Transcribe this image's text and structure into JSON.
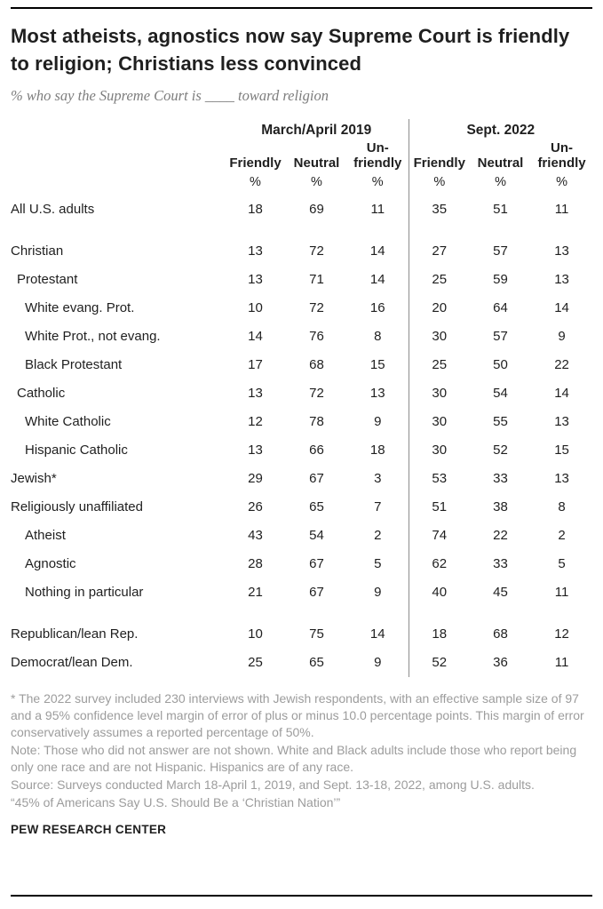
{
  "header": {
    "title": "Most atheists, agnostics now say Supreme Court is friendly to religion; Christians less convinced",
    "subtitle": "% who say the Supreme Court is ____ toward religion"
  },
  "chart_data": {
    "type": "table",
    "title": "Most atheists, agnostics now say Supreme Court is friendly to religion; Christians less convinced",
    "subtitle": "% who say the Supreme Court is ____ toward religion",
    "column_groups": [
      "March/April 2019",
      "Sept. 2022"
    ],
    "columns": [
      "Friendly",
      "Neutral",
      "Un-friendly"
    ],
    "unit": "%",
    "rows": [
      {
        "label": "All U.S. adults",
        "indent": 0,
        "gap": false,
        "values": [
          18,
          69,
          11,
          35,
          51,
          11
        ]
      },
      {
        "label": "Christian",
        "indent": 0,
        "gap": true,
        "values": [
          13,
          72,
          14,
          27,
          57,
          13
        ]
      },
      {
        "label": "Protestant",
        "indent": 1,
        "gap": false,
        "values": [
          13,
          71,
          14,
          25,
          59,
          13
        ]
      },
      {
        "label": "White evang. Prot.",
        "indent": 2,
        "gap": false,
        "values": [
          10,
          72,
          16,
          20,
          64,
          14
        ]
      },
      {
        "label": "White Prot., not evang.",
        "indent": 2,
        "gap": false,
        "values": [
          14,
          76,
          8,
          30,
          57,
          9
        ]
      },
      {
        "label": "Black Protestant",
        "indent": 2,
        "gap": false,
        "values": [
          17,
          68,
          15,
          25,
          50,
          22
        ]
      },
      {
        "label": "Catholic",
        "indent": 1,
        "gap": false,
        "values": [
          13,
          72,
          13,
          30,
          54,
          14
        ]
      },
      {
        "label": "White Catholic",
        "indent": 2,
        "gap": false,
        "values": [
          12,
          78,
          9,
          30,
          55,
          13
        ]
      },
      {
        "label": "Hispanic Catholic",
        "indent": 2,
        "gap": false,
        "values": [
          13,
          66,
          18,
          30,
          52,
          15
        ]
      },
      {
        "label": "Jewish*",
        "indent": 0,
        "gap": false,
        "values": [
          29,
          67,
          3,
          53,
          33,
          13
        ]
      },
      {
        "label": "Religiously unaffiliated",
        "indent": 0,
        "gap": false,
        "values": [
          26,
          65,
          7,
          51,
          38,
          8
        ]
      },
      {
        "label": "Atheist",
        "indent": 2,
        "gap": false,
        "values": [
          43,
          54,
          2,
          74,
          22,
          2
        ]
      },
      {
        "label": "Agnostic",
        "indent": 2,
        "gap": false,
        "values": [
          28,
          67,
          5,
          62,
          33,
          5
        ]
      },
      {
        "label": "Nothing in particular",
        "indent": 2,
        "gap": false,
        "values": [
          21,
          67,
          9,
          40,
          45,
          11
        ]
      },
      {
        "label": "Republican/lean Rep.",
        "indent": 0,
        "gap": true,
        "values": [
          10,
          75,
          14,
          18,
          68,
          12
        ]
      },
      {
        "label": "Democrat/lean Dem.",
        "indent": 0,
        "gap": false,
        "values": [
          25,
          65,
          9,
          52,
          36,
          11
        ]
      }
    ]
  },
  "footer": {
    "notes": [
      "* The 2022 survey included 230 interviews with Jewish respondents, with an effective sample size of 97 and a 95% confidence level margin of error of plus or minus 10.0 percentage points. This margin of error conservatively assumes a reported percentage of 50%.",
      "Note: Those who did not answer are not shown. White and Black adults include those who report being only one race and are not Hispanic. Hispanics are of any race.",
      "Source: Surveys conducted March 18-April 1, 2019, and Sept. 13-18, 2022, among U.S. adults.",
      "“45% of Americans Say U.S. Should Be a ‘Christian Nation’”"
    ],
    "brand": "PEW RESEARCH CENTER"
  },
  "colors": {
    "title_text": "#1f1f1f",
    "subtitle_text": "#7d7d7d",
    "notes_text": "#9c9c9c",
    "rule": "#000000",
    "divider": "#8c8c8c"
  }
}
